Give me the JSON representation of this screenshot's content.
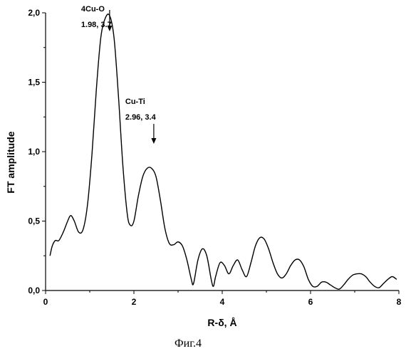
{
  "chart_data": {
    "type": "line",
    "xlabel": "R-δ, Å",
    "ylabel": "FT amplitude",
    "xlim": [
      0,
      8
    ],
    "ylim": [
      0,
      2.0
    ],
    "x_ticks": [
      "0",
      "2",
      "4",
      "6",
      "8"
    ],
    "y_ticks": [
      "0,0",
      "0,5",
      "1,0",
      "1,5",
      "2,0"
    ],
    "grid": false,
    "legend": "none",
    "series": [
      {
        "x": [
          0.1,
          0.15,
          0.22,
          0.3,
          0.4,
          0.5,
          0.57,
          0.65,
          0.75,
          0.85,
          0.95,
          1.05,
          1.15,
          1.25,
          1.35,
          1.45,
          1.55,
          1.65,
          1.75,
          1.85,
          1.92,
          2.0,
          2.1,
          2.2,
          2.3,
          2.4,
          2.5,
          2.6,
          2.7,
          2.8,
          2.9,
          3.0,
          3.1,
          3.2,
          3.3,
          3.35,
          3.45,
          3.55,
          3.65,
          3.75,
          3.8,
          3.85,
          3.95,
          4.05,
          4.15,
          4.25,
          4.35,
          4.45,
          4.55,
          4.65,
          4.75,
          4.85,
          4.95,
          5.05,
          5.15,
          5.25,
          5.35,
          5.45,
          5.55,
          5.65,
          5.75,
          5.85,
          5.95,
          6.05,
          6.15,
          6.25,
          6.35,
          6.45,
          6.55,
          6.65,
          6.75,
          6.85,
          6.95,
          7.05,
          7.15,
          7.25,
          7.35,
          7.45,
          7.55,
          7.65,
          7.75,
          7.85,
          7.95
        ],
        "values": [
          0.25,
          0.32,
          0.36,
          0.36,
          0.42,
          0.5,
          0.54,
          0.5,
          0.42,
          0.44,
          0.62,
          0.98,
          1.45,
          1.82,
          1.96,
          1.98,
          1.82,
          1.4,
          0.9,
          0.55,
          0.47,
          0.5,
          0.68,
          0.82,
          0.88,
          0.88,
          0.82,
          0.65,
          0.45,
          0.34,
          0.33,
          0.35,
          0.32,
          0.22,
          0.08,
          0.05,
          0.22,
          0.3,
          0.25,
          0.08,
          0.03,
          0.1,
          0.2,
          0.18,
          0.12,
          0.18,
          0.22,
          0.15,
          0.1,
          0.2,
          0.32,
          0.38,
          0.37,
          0.3,
          0.2,
          0.12,
          0.09,
          0.12,
          0.18,
          0.22,
          0.22,
          0.17,
          0.08,
          0.03,
          0.03,
          0.06,
          0.06,
          0.04,
          0.02,
          0.01,
          0.04,
          0.08,
          0.11,
          0.12,
          0.12,
          0.1,
          0.06,
          0.03,
          0.02,
          0.05,
          0.08,
          0.1,
          0.08
        ]
      }
    ],
    "annotations": [
      {
        "line1": "4Cu-O",
        "line2": "1.98, 3.7",
        "x": 1.45
      },
      {
        "line1": "Cu-Ti",
        "line2": "2.96, 3.4",
        "x": 2.45
      }
    ]
  },
  "caption": "Фиг.4"
}
